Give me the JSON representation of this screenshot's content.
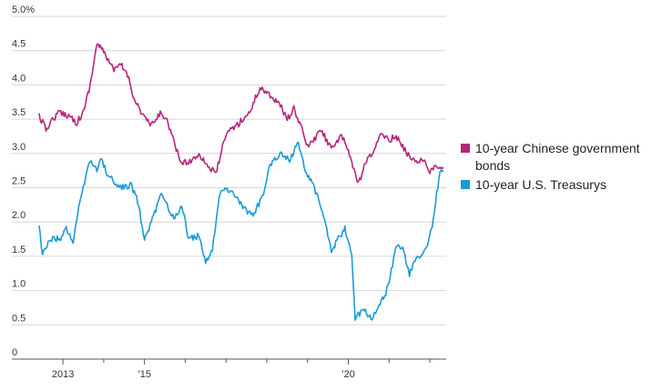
{
  "chart_data": {
    "type": "line",
    "title": "",
    "xlabel": "",
    "ylabel": "",
    "x_range": [
      "2012-06",
      "2022-05"
    ],
    "ylim": [
      0,
      5.0
    ],
    "y_ticks": [
      {
        "value": 0,
        "label": "0"
      },
      {
        "value": 0.5,
        "label": "0.5"
      },
      {
        "value": 1.0,
        "label": "1.0"
      },
      {
        "value": 1.5,
        "label": "1.5"
      },
      {
        "value": 2.0,
        "label": "2.0"
      },
      {
        "value": 2.5,
        "label": "2.5"
      },
      {
        "value": 3.0,
        "label": "3.0"
      },
      {
        "value": 3.5,
        "label": "3.5"
      },
      {
        "value": 4.0,
        "label": "4.0"
      },
      {
        "value": 4.5,
        "label": "4.5"
      },
      {
        "value": 5.0,
        "label": "5.0%"
      }
    ],
    "x_ticks": [
      {
        "value": "2013-01",
        "label": "2013"
      },
      {
        "value": "2015-01",
        "label": "’15"
      },
      {
        "value": "2020-01",
        "label": "’20"
      }
    ],
    "x_minor_ticks": [
      "2014-01",
      "2016-01",
      "2017-01",
      "2018-01",
      "2019-01",
      "2021-01",
      "2022-01"
    ],
    "grid": "horizontal",
    "legend_position": "right",
    "series": [
      {
        "name": "10-year Chinese government bonds",
        "color": "#b5267b",
        "points": [
          [
            "2012-06",
            3.55
          ],
          [
            "2012-08",
            3.35
          ],
          [
            "2012-10",
            3.5
          ],
          [
            "2012-12",
            3.6
          ],
          [
            "2013-03",
            3.55
          ],
          [
            "2013-05",
            3.45
          ],
          [
            "2013-07",
            3.6
          ],
          [
            "2013-09",
            4.0
          ],
          [
            "2013-11",
            4.6
          ],
          [
            "2013-12",
            4.55
          ],
          [
            "2014-02",
            4.4
          ],
          [
            "2014-04",
            4.2
          ],
          [
            "2014-06",
            4.3
          ],
          [
            "2014-08",
            4.15
          ],
          [
            "2014-10",
            3.8
          ],
          [
            "2014-12",
            3.6
          ],
          [
            "2015-03",
            3.4
          ],
          [
            "2015-06",
            3.6
          ],
          [
            "2015-08",
            3.45
          ],
          [
            "2015-10",
            3.1
          ],
          [
            "2015-12",
            2.85
          ],
          [
            "2016-03",
            2.9
          ],
          [
            "2016-05",
            3.0
          ],
          [
            "2016-08",
            2.8
          ],
          [
            "2016-10",
            2.7
          ],
          [
            "2016-12",
            3.1
          ],
          [
            "2017-02",
            3.35
          ],
          [
            "2017-04",
            3.4
          ],
          [
            "2017-06",
            3.5
          ],
          [
            "2017-08",
            3.6
          ],
          [
            "2017-10",
            3.85
          ],
          [
            "2017-11",
            3.95
          ],
          [
            "2018-01",
            3.9
          ],
          [
            "2018-03",
            3.8
          ],
          [
            "2018-05",
            3.7
          ],
          [
            "2018-07",
            3.5
          ],
          [
            "2018-09",
            3.65
          ],
          [
            "2018-11",
            3.4
          ],
          [
            "2019-01",
            3.1
          ],
          [
            "2019-03",
            3.2
          ],
          [
            "2019-05",
            3.35
          ],
          [
            "2019-07",
            3.15
          ],
          [
            "2019-09",
            3.1
          ],
          [
            "2019-11",
            3.25
          ],
          [
            "2020-01",
            3.05
          ],
          [
            "2020-03",
            2.7
          ],
          [
            "2020-04",
            2.55
          ],
          [
            "2020-06",
            2.85
          ],
          [
            "2020-08",
            3.0
          ],
          [
            "2020-10",
            3.2
          ],
          [
            "2020-11",
            3.3
          ],
          [
            "2021-01",
            3.2
          ],
          [
            "2021-03",
            3.25
          ],
          [
            "2021-05",
            3.1
          ],
          [
            "2021-07",
            2.95
          ],
          [
            "2021-09",
            2.9
          ],
          [
            "2021-11",
            2.9
          ],
          [
            "2022-01",
            2.75
          ],
          [
            "2022-03",
            2.8
          ],
          [
            "2022-05",
            2.78
          ]
        ]
      },
      {
        "name": "10-year U.S. Treasurys",
        "color": "#1a9bd7",
        "points": [
          [
            "2012-06",
            1.95
          ],
          [
            "2012-07",
            1.5
          ],
          [
            "2012-08",
            1.65
          ],
          [
            "2012-10",
            1.75
          ],
          [
            "2012-12",
            1.75
          ],
          [
            "2013-02",
            1.9
          ],
          [
            "2013-04",
            1.7
          ],
          [
            "2013-06",
            2.3
          ],
          [
            "2013-08",
            2.7
          ],
          [
            "2013-09",
            2.9
          ],
          [
            "2013-11",
            2.75
          ],
          [
            "2013-12",
            2.95
          ],
          [
            "2014-02",
            2.7
          ],
          [
            "2014-05",
            2.55
          ],
          [
            "2014-07",
            2.5
          ],
          [
            "2014-09",
            2.55
          ],
          [
            "2014-11",
            2.3
          ],
          [
            "2015-01",
            1.75
          ],
          [
            "2015-03",
            2.0
          ],
          [
            "2015-06",
            2.4
          ],
          [
            "2015-08",
            2.2
          ],
          [
            "2015-10",
            2.05
          ],
          [
            "2015-12",
            2.25
          ],
          [
            "2016-02",
            1.75
          ],
          [
            "2016-05",
            1.8
          ],
          [
            "2016-07",
            1.4
          ],
          [
            "2016-09",
            1.6
          ],
          [
            "2016-11",
            2.35
          ],
          [
            "2016-12",
            2.5
          ],
          [
            "2017-03",
            2.45
          ],
          [
            "2017-06",
            2.2
          ],
          [
            "2017-09",
            2.1
          ],
          [
            "2017-12",
            2.4
          ],
          [
            "2018-02",
            2.85
          ],
          [
            "2018-05",
            3.0
          ],
          [
            "2018-08",
            2.9
          ],
          [
            "2018-10",
            3.2
          ],
          [
            "2018-12",
            2.8
          ],
          [
            "2019-03",
            2.5
          ],
          [
            "2019-06",
            2.05
          ],
          [
            "2019-08",
            1.55
          ],
          [
            "2019-10",
            1.75
          ],
          [
            "2019-12",
            1.9
          ],
          [
            "2020-02",
            1.5
          ],
          [
            "2020-03",
            0.6
          ],
          [
            "2020-04",
            0.65
          ],
          [
            "2020-06",
            0.7
          ],
          [
            "2020-08",
            0.55
          ],
          [
            "2020-10",
            0.8
          ],
          [
            "2020-12",
            0.95
          ],
          [
            "2021-02",
            1.35
          ],
          [
            "2021-03",
            1.65
          ],
          [
            "2021-05",
            1.6
          ],
          [
            "2021-07",
            1.25
          ],
          [
            "2021-09",
            1.45
          ],
          [
            "2021-11",
            1.5
          ],
          [
            "2022-01",
            1.8
          ],
          [
            "2022-02",
            2.0
          ],
          [
            "2022-03",
            2.4
          ],
          [
            "2022-04",
            2.75
          ],
          [
            "2022-05",
            2.75
          ]
        ]
      }
    ]
  },
  "legend": [
    {
      "lines": [
        "10-year Chinese government",
        "bonds"
      ],
      "color": "#b5267b"
    },
    {
      "lines": [
        "10-year U.S. Treasurys"
      ],
      "color": "#1a9bd7"
    }
  ]
}
